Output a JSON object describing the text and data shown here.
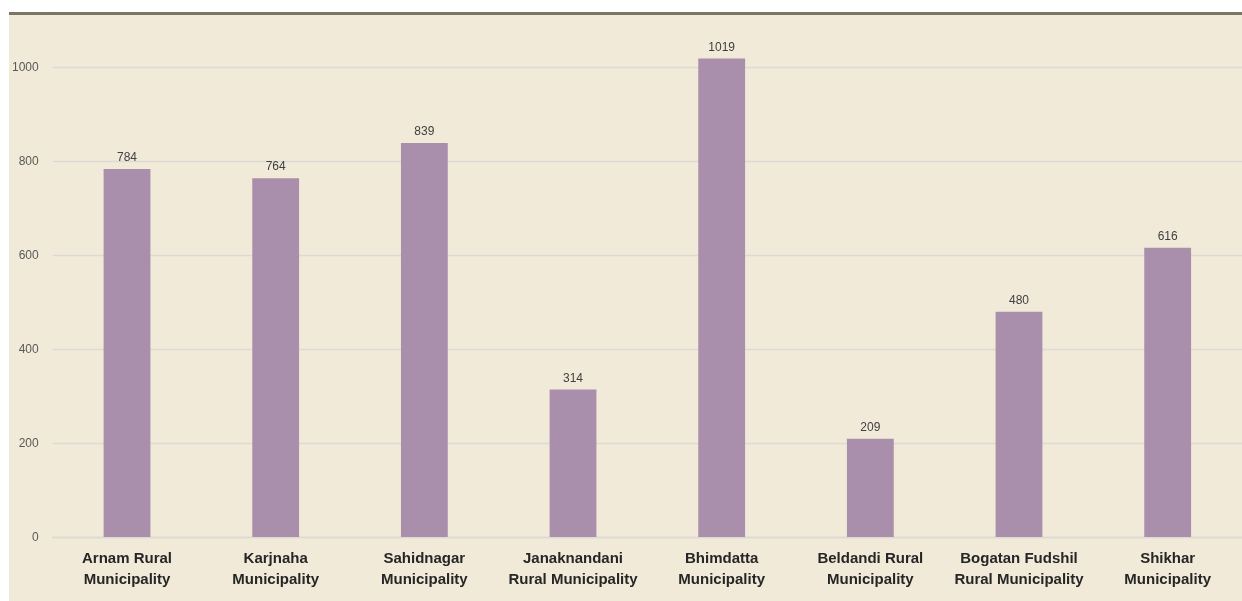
{
  "chart_data": {
    "type": "bar",
    "categories": [
      "Arnam Rural Municipality",
      "Karjnaha Municipality",
      "Sahidnagar Municipality",
      "Janaknandani Rural Municipality",
      "Bhimdatta Municipality",
      "Beldandi Rural Municipality",
      "Bogatan Fudshil Rural Municipality",
      "Shikhar Municipality"
    ],
    "values": [
      784,
      764,
      839,
      314,
      1019,
      209,
      480,
      616
    ],
    "color": "#a98fab",
    "ylim": [
      0,
      1115
    ],
    "yticks": [
      0,
      200,
      400,
      600,
      800,
      1000
    ],
    "grid": "y",
    "data_labels": true
  }
}
